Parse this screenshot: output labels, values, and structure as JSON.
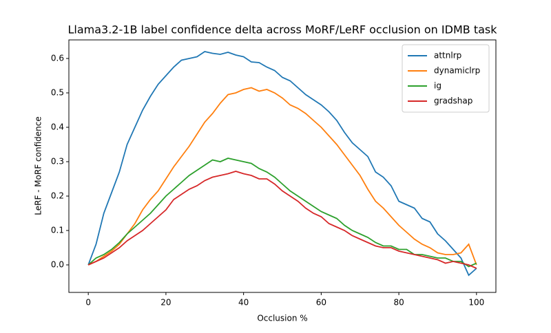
{
  "chart_data": {
    "type": "line",
    "title": "Llama3.2-1B label confidence delta across MoRF/LeRF occlusion on IDMB task",
    "xlabel": "Occlusion %",
    "ylabel": "LeRF - MoRF confidence",
    "x": [
      0,
      2,
      4,
      6,
      8,
      10,
      12,
      14,
      16,
      18,
      20,
      22,
      24,
      26,
      28,
      30,
      32,
      34,
      36,
      38,
      40,
      42,
      44,
      46,
      48,
      50,
      52,
      54,
      56,
      58,
      60,
      62,
      64,
      66,
      68,
      70,
      72,
      74,
      76,
      78,
      80,
      82,
      84,
      86,
      88,
      90,
      92,
      94,
      96,
      98,
      100
    ],
    "series": [
      {
        "name": "attnlrp",
        "color": "#1f77b4",
        "values": [
          0,
          0.06,
          0.15,
          0.21,
          0.27,
          0.35,
          0.4,
          0.45,
          0.49,
          0.525,
          0.55,
          0.575,
          0.595,
          0.6,
          0.605,
          0.62,
          0.615,
          0.612,
          0.618,
          0.61,
          0.605,
          0.59,
          0.588,
          0.575,
          0.565,
          0.545,
          0.535,
          0.515,
          0.495,
          0.48,
          0.465,
          0.445,
          0.42,
          0.385,
          0.355,
          0.335,
          0.315,
          0.27,
          0.255,
          0.23,
          0.185,
          0.175,
          0.165,
          0.135,
          0.125,
          0.09,
          0.07,
          0.045,
          0.02,
          -0.03,
          -0.01
        ]
      },
      {
        "name": "dynamiclrp",
        "color": "#ff7f0e",
        "values": [
          0,
          0.01,
          0.025,
          0.04,
          0.06,
          0.09,
          0.12,
          0.16,
          0.19,
          0.215,
          0.25,
          0.285,
          0.315,
          0.345,
          0.38,
          0.415,
          0.44,
          0.47,
          0.495,
          0.5,
          0.51,
          0.515,
          0.505,
          0.51,
          0.5,
          0.485,
          0.465,
          0.455,
          0.44,
          0.42,
          0.4,
          0.375,
          0.35,
          0.32,
          0.29,
          0.26,
          0.22,
          0.185,
          0.165,
          0.14,
          0.115,
          0.095,
          0.075,
          0.06,
          0.05,
          0.035,
          0.03,
          0.03,
          0.035,
          0.06,
          0.0
        ]
      },
      {
        "name": "ig",
        "color": "#2ca02c",
        "values": [
          0,
          0.02,
          0.03,
          0.045,
          0.065,
          0.09,
          0.11,
          0.13,
          0.15,
          0.175,
          0.2,
          0.22,
          0.24,
          0.26,
          0.275,
          0.29,
          0.305,
          0.3,
          0.31,
          0.305,
          0.3,
          0.295,
          0.28,
          0.27,
          0.255,
          0.235,
          0.215,
          0.2,
          0.185,
          0.17,
          0.155,
          0.145,
          0.135,
          0.115,
          0.1,
          0.09,
          0.08,
          0.065,
          0.055,
          0.055,
          0.045,
          0.045,
          0.03,
          0.03,
          0.025,
          0.02,
          0.02,
          0.01,
          0.01,
          -0.005,
          0.005
        ]
      },
      {
        "name": "gradshap",
        "color": "#d62728",
        "values": [
          0,
          0.01,
          0.02,
          0.035,
          0.05,
          0.07,
          0.085,
          0.1,
          0.12,
          0.14,
          0.16,
          0.19,
          0.205,
          0.22,
          0.23,
          0.245,
          0.255,
          0.26,
          0.265,
          0.272,
          0.265,
          0.26,
          0.25,
          0.25,
          0.235,
          0.215,
          0.2,
          0.185,
          0.165,
          0.15,
          0.14,
          0.12,
          0.11,
          0.1,
          0.085,
          0.075,
          0.065,
          0.055,
          0.05,
          0.05,
          0.04,
          0.035,
          0.03,
          0.025,
          0.02,
          0.015,
          0.005,
          0.01,
          0.005,
          0.0,
          -0.01
        ]
      }
    ],
    "xlim": [
      -5,
      105
    ],
    "xticks": [
      0,
      20,
      40,
      60,
      80,
      100
    ],
    "ylim": [
      -0.08,
      0.654
    ],
    "yticks": [
      {
        "value": 0,
        "label": "0.0"
      },
      0.1,
      0.2,
      0.3,
      0.4,
      0.5,
      0.6
    ],
    "legend": "upper right"
  }
}
